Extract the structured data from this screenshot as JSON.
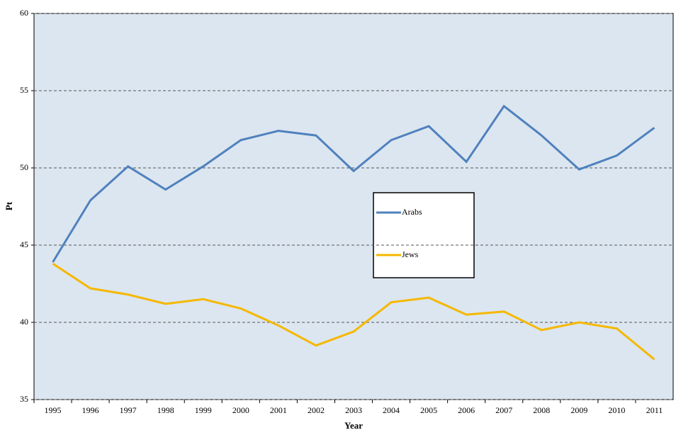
{
  "chart_data": {
    "type": "line",
    "x_label": "Year",
    "y_label": "Pt",
    "categories": [
      "1995",
      "1996",
      "1997",
      "1998",
      "1999",
      "2000",
      "2001",
      "2002",
      "2003",
      "2004",
      "2005",
      "2006",
      "2007",
      "2008",
      "2009",
      "2010",
      "2011"
    ],
    "series": [
      {
        "name": "Arabs",
        "color": "#4f81bd",
        "values": [
          43.9,
          47.9,
          50.1,
          48.6,
          50.1,
          51.8,
          52.4,
          52.1,
          49.8,
          51.8,
          52.7,
          50.4,
          54.0,
          52.1,
          49.9,
          50.8,
          52.6
        ]
      },
      {
        "name": "Jews",
        "color": "#f5b800",
        "values": [
          43.8,
          42.2,
          41.8,
          41.2,
          41.5,
          40.9,
          39.8,
          38.5,
          39.4,
          41.3,
          41.6,
          40.5,
          40.7,
          39.5,
          40.0,
          39.6,
          37.6
        ]
      }
    ],
    "ylim": [
      35,
      60
    ],
    "yticks": [
      35,
      40,
      45,
      50,
      55,
      60
    ],
    "grid": true
  }
}
